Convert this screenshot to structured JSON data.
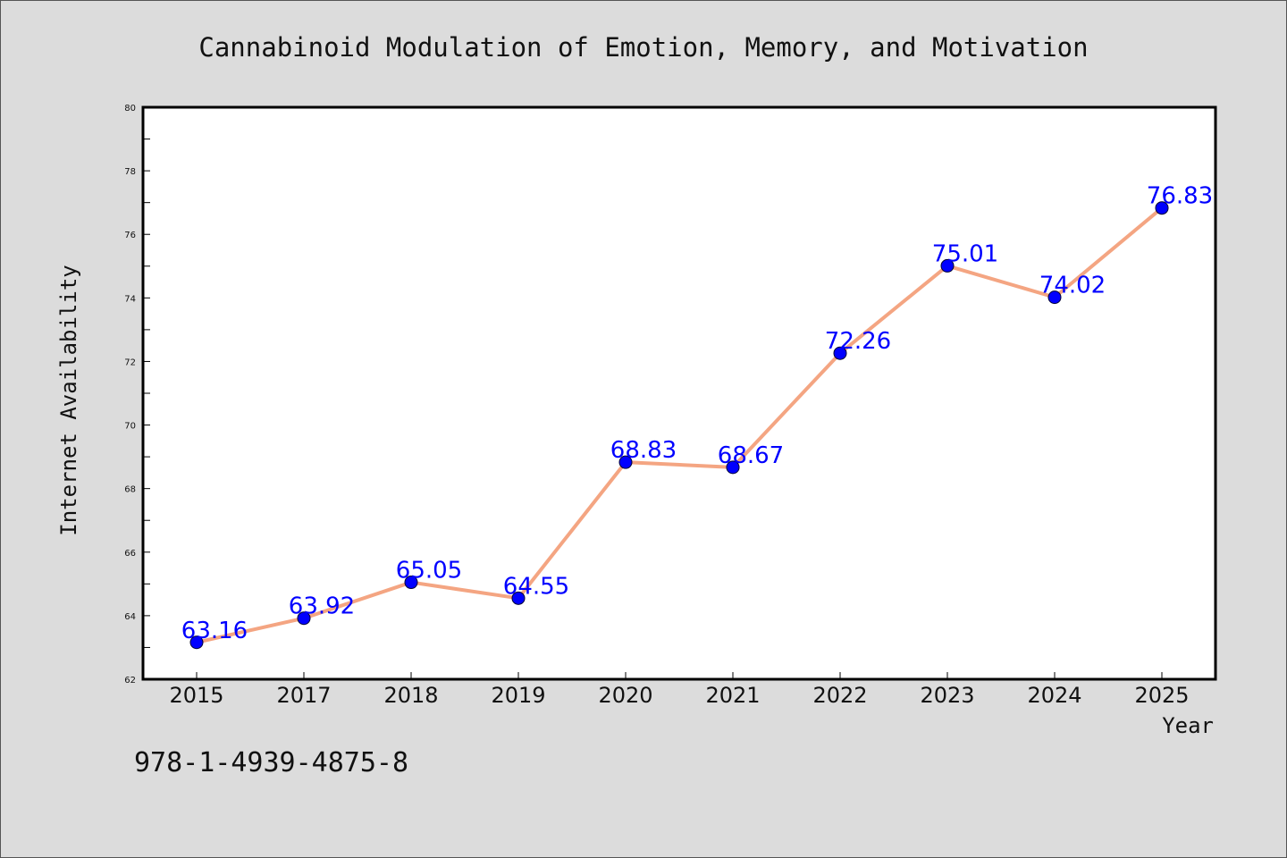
{
  "chart_data": {
    "type": "line",
    "title": "Cannabinoid Modulation of Emotion, Memory, and Motivation",
    "xlabel": "Year",
    "ylabel": "Internet Availability",
    "categories": [
      "2015",
      "2017",
      "2018",
      "2019",
      "2020",
      "2021",
      "2022",
      "2023",
      "2024",
      "2025"
    ],
    "series": [
      {
        "values": [
          63.16,
          63.92,
          65.05,
          64.55,
          68.83,
          68.67,
          72.26,
          75.01,
          74.02,
          76.83
        ],
        "labels": [
          "63.16",
          "63.92",
          "65.05",
          "64.55",
          "68.83",
          "68.67",
          "72.26",
          "75.01",
          "74.02",
          "76.83"
        ],
        "line_color": "#f4a582",
        "marker_color": "#0000ff"
      }
    ],
    "ylim": [
      62,
      80
    ],
    "y_ticks": [
      "62",
      "64",
      "66",
      "68",
      "70",
      "72",
      "74",
      "76",
      "78",
      "80"
    ],
    "grid": false,
    "legend": "none"
  },
  "annotation": {
    "isbn": "978-1-4939-4875-8"
  },
  "colors": {
    "background": "#dcdcdc",
    "plot_background": "#ffffff",
    "axis": "#000000",
    "data_label": "#0000ff"
  }
}
